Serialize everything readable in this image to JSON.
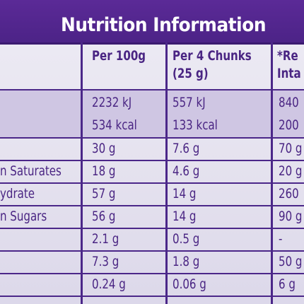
{
  "title": "Nutrition Information",
  "columns": [
    "Per 100g",
    "Per 4 Chunks",
    "(25 g)",
    "*Re",
    "Inta"
  ],
  "rows": [
    {
      "label": "",
      "per100": "2232 kJ",
      "per4": "557 kJ",
      "ri": "840"
    },
    {
      "label": "",
      "per100": "534 kcal",
      "per4": "133 kcal",
      "ri": "200"
    },
    {
      "label": "",
      "per100": "30 g",
      "per4": "7.6 g",
      "ri": "70 g"
    },
    {
      "label": "n Saturates",
      "per100": "18 g",
      "per4": "4.6 g",
      "ri": "20 g"
    },
    {
      "label": "ydrate",
      "per100": "57 g",
      "per4": "14 g",
      "ri": "260"
    },
    {
      "label": "n Sugars",
      "per100": "56 g",
      "per4": "14 g",
      "ri": "90 g"
    },
    {
      "label": "",
      "per100": "2.1 g",
      "per4": "0.5 g",
      "ri": "-"
    },
    {
      "label": "",
      "per100": "7.3 g",
      "per4": "1.8 g",
      "ri": "50 g"
    },
    {
      "label": "",
      "per100": "0.24 g",
      "per4": "0.06 g",
      "ri": "6 g"
    }
  ]
}
